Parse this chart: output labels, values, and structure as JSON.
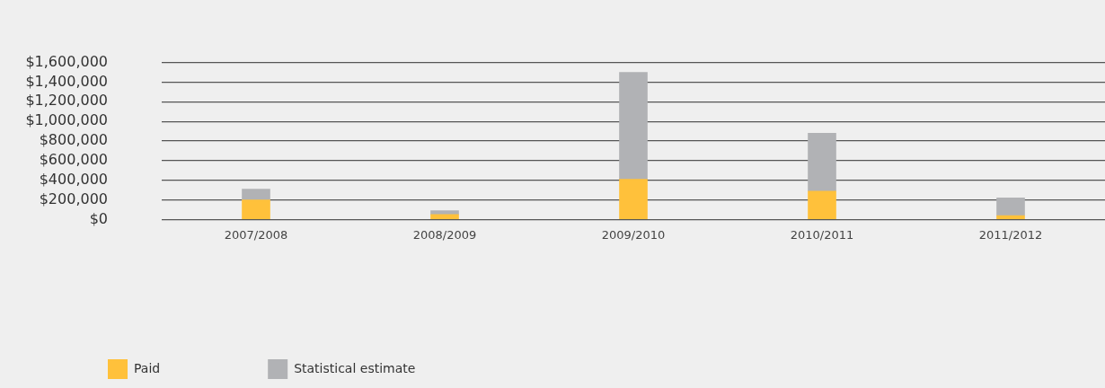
{
  "chart_data": {
    "type": "bar",
    "stacked": true,
    "categories": [
      "2007/2008",
      "2008/2009",
      "2009/2010",
      "2010/2011",
      "2011/2012"
    ],
    "series": [
      {
        "name": "Paid",
        "color": "#ffc13b",
        "values": [
          200000,
          50000,
          410000,
          290000,
          40000
        ]
      },
      {
        "name": "Statistical estimate",
        "color": "#b1b2b5",
        "values": [
          110000,
          40000,
          1090000,
          590000,
          180000
        ]
      }
    ],
    "ylim": [
      0,
      1600000
    ],
    "yticks": [
      {
        "value": 0,
        "label": "$0"
      },
      {
        "value": 200000,
        "label": "$200,000"
      },
      {
        "value": 400000,
        "label": "$400,000"
      },
      {
        "value": 600000,
        "label": "$600,000"
      },
      {
        "value": 800000,
        "label": "$800,000"
      },
      {
        "value": 1000000,
        "label": "$1,000,000"
      },
      {
        "value": 1200000,
        "label": "$1,200,000"
      },
      {
        "value": 1400000,
        "label": "$1,400,000"
      },
      {
        "value": 1600000,
        "label": "$1,600,000"
      }
    ],
    "grid": "y",
    "legend": "bottom left"
  }
}
